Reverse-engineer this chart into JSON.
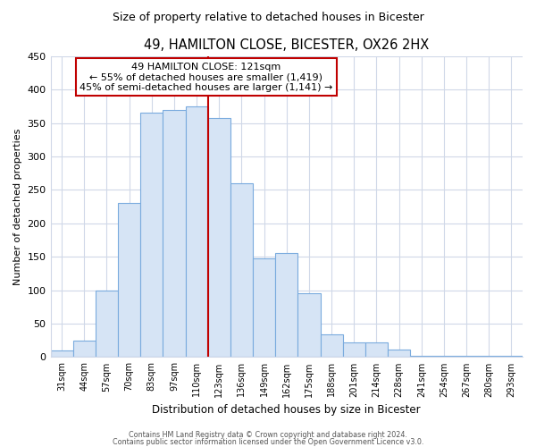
{
  "title": "49, HAMILTON CLOSE, BICESTER, OX26 2HX",
  "subtitle": "Size of property relative to detached houses in Bicester",
  "xlabel": "Distribution of detached houses by size in Bicester",
  "ylabel": "Number of detached properties",
  "bar_labels": [
    "31sqm",
    "44sqm",
    "57sqm",
    "70sqm",
    "83sqm",
    "97sqm",
    "110sqm",
    "123sqm",
    "136sqm",
    "149sqm",
    "162sqm",
    "175sqm",
    "188sqm",
    "201sqm",
    "214sqm",
    "228sqm",
    "241sqm",
    "254sqm",
    "267sqm",
    "280sqm",
    "293sqm"
  ],
  "bar_values": [
    10,
    25,
    100,
    230,
    365,
    370,
    375,
    358,
    260,
    148,
    155,
    95,
    34,
    22,
    22,
    11,
    2,
    2,
    2,
    2,
    2
  ],
  "bar_color": "#d6e4f5",
  "bar_edge_color": "#7aabde",
  "vline_color": "#c00000",
  "vline_x_index": 7,
  "annotation_title": "49 HAMILTON CLOSE: 121sqm",
  "annotation_line1": "← 55% of detached houses are smaller (1,419)",
  "annotation_line2": "45% of semi-detached houses are larger (1,141) →",
  "annotation_box_color": "#ffffff",
  "annotation_box_edge": "#c00000",
  "ylim": [
    0,
    450
  ],
  "yticks": [
    0,
    50,
    100,
    150,
    200,
    250,
    300,
    350,
    400,
    450
  ],
  "grid_color": "#d0d8e8",
  "bg_color": "#ffffff",
  "footer1": "Contains HM Land Registry data © Crown copyright and database right 2024.",
  "footer2": "Contains public sector information licensed under the Open Government Licence v3.0."
}
